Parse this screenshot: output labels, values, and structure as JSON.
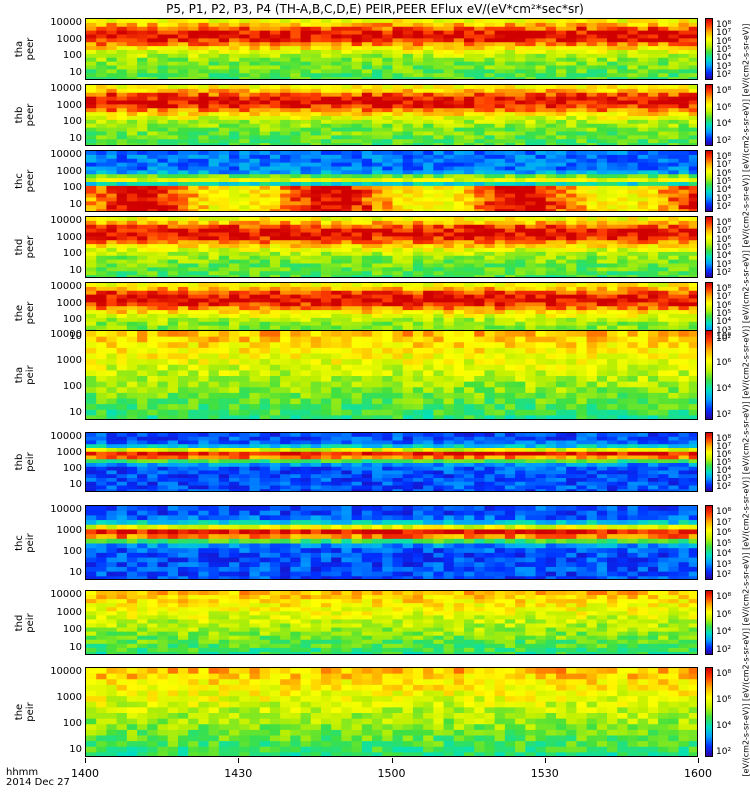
{
  "title": "P5, P1, P2, P3, P4 (TH-A,B,C,D,E) PEIR,PEER EFlux eV/(eV*cm²*sec*sr)",
  "x_axis": {
    "label_line1": "hhmm",
    "label_line2": "2014 Dec 27",
    "ticks": [
      "1400",
      "1430",
      "1500",
      "1530",
      "1600"
    ]
  },
  "colorbar_title": "[eV/(cm2-s-sr-eV)] [eV/(cm2-s-sr-eV)] [eV/(cm2-s-sr-eV)] [eV/(cm2-s-sr-eV)] [eV/(cm2-s-sr-eV)] [eV/(cm2-s-sr-eV)] [eV/(cm2-s-sr-eV)] [eV/(cm2-s-sr-eV)] [eV/(cm2-s-sr-eV)] [eV/(cm2-s-sr-eV)]",
  "chart_data": {
    "type": "heatmap",
    "x_range": [
      "1400",
      "1600"
    ],
    "y_scale": "log",
    "panels": [
      {
        "probe": "tha",
        "species": "peer",
        "yticks": [
          "10000",
          "1000",
          "100",
          "10"
        ],
        "colorbar_ticks": [
          "10⁸",
          "10⁷",
          "10⁶",
          "10⁵",
          "10⁴",
          "10³",
          "10²"
        ],
        "character": "electron"
      },
      {
        "probe": "thb",
        "species": "peer",
        "yticks": [
          "10000",
          "1000",
          "100",
          "10"
        ],
        "colorbar_ticks": [
          "10⁸",
          "10⁶",
          "10⁴",
          "10²"
        ],
        "character": "electron"
      },
      {
        "probe": "thc",
        "species": "peer",
        "yticks": [
          "10000",
          "1000",
          "100",
          "10"
        ],
        "colorbar_ticks": [
          "10⁸",
          "10⁷",
          "10⁶",
          "10⁵",
          "10⁴",
          "10³",
          "10²"
        ],
        "character": "electron_low"
      },
      {
        "probe": "thd",
        "species": "peer",
        "yticks": [
          "10000",
          "1000",
          "100",
          "10"
        ],
        "colorbar_ticks": [
          "10⁸",
          "10⁷",
          "10⁶",
          "10⁵",
          "10⁴",
          "10³",
          "10²"
        ],
        "character": "electron"
      },
      {
        "probe": "the",
        "species": "peer",
        "yticks": [
          "10000",
          "1000",
          "100",
          "10"
        ],
        "colorbar_ticks": [
          "10⁸",
          "10⁷",
          "10⁶",
          "10⁵",
          "10⁴",
          "10³",
          "10²"
        ],
        "character": "electron"
      },
      {
        "probe": "tha",
        "species": "peir",
        "yticks": [
          "10000",
          "1000",
          "100",
          "10"
        ],
        "colorbar_ticks": [
          "10⁸",
          "10⁶",
          "10⁴",
          "10²"
        ],
        "character": "ion"
      },
      {
        "probe": "thb",
        "species": "peir",
        "yticks": [
          "10000",
          "1000",
          "100",
          "10"
        ],
        "colorbar_ticks": [
          "10⁸",
          "10⁷",
          "10⁶",
          "10⁵",
          "10⁴",
          "10³",
          "10²"
        ],
        "character": "ion_narrow"
      },
      {
        "probe": "thc",
        "species": "peir",
        "yticks": [
          "10000",
          "1000",
          "100",
          "10"
        ],
        "colorbar_ticks": [
          "10⁸",
          "10⁷",
          "10⁶",
          "10⁵",
          "10⁴",
          "10³",
          "10²"
        ],
        "character": "ion_narrow"
      },
      {
        "probe": "thd",
        "species": "peir",
        "yticks": [
          "10000",
          "1000",
          "100",
          "10"
        ],
        "colorbar_ticks": [
          "10⁸",
          "10⁶",
          "10⁴",
          "10²"
        ],
        "character": "ion"
      },
      {
        "probe": "the",
        "species": "peir",
        "yticks": [
          "10000",
          "1000",
          "100",
          "10"
        ],
        "colorbar_ticks": [
          "10⁸",
          "10⁶",
          "10⁴",
          "10²"
        ],
        "character": "ion"
      }
    ]
  },
  "colors": {
    "high": "#d00000",
    "mid": "#ffff00",
    "low": "#0030ff",
    "background": "#ffffff"
  }
}
